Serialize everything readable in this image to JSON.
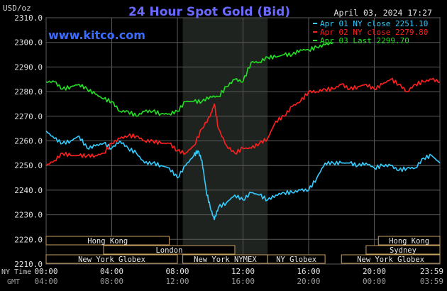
{
  "header": {
    "title": "24 Hour Spot Gold (Bid)",
    "unit": "USD/oz",
    "timestamp": "April 03, 2024 17:27",
    "watermark": "www.kitco.com"
  },
  "legend": [
    {
      "label": "Apr 01 NY close 2251.10",
      "color": "#33ccff"
    },
    {
      "label": "Apr 02 NY close 2279.80",
      "color": "#ff2020"
    },
    {
      "label": "Apr 03 Last 2299.70",
      "color": "#22e022"
    }
  ],
  "y_ticks": [
    "2310.0",
    "2300.0",
    "2290.0",
    "2280.0",
    "2270.0",
    "2260.0",
    "2250.0",
    "2240.0",
    "2230.0",
    "2220.0",
    "2210.0"
  ],
  "x_axis": {
    "ny_label": "NY Time",
    "gmt_label": "GMT",
    "ny_ticks": [
      "00:00",
      "04:00",
      "08:00",
      "12:00",
      "16:00",
      "20:00",
      "23:59"
    ],
    "gmt_ticks": [
      "04:00",
      "08:00",
      "12:00",
      "16:00",
      "20:00",
      "00:00",
      "03:59"
    ]
  },
  "sessions": [
    {
      "label": "Hong Kong",
      "row": 0,
      "start": 0,
      "end": 7.5
    },
    {
      "label": "Hong Kong",
      "row": 0,
      "start": 20.25,
      "end": 24
    },
    {
      "label": "London",
      "row": 1,
      "start": 3.5,
      "end": 11.5
    },
    {
      "label": "Sydney",
      "row": 1,
      "start": 19.5,
      "end": 24
    },
    {
      "label": "New York Globex",
      "row": 2,
      "start": 0,
      "end": 8
    },
    {
      "label": "New York NYMEX",
      "row": 2,
      "start": 8.33,
      "end": 13.5
    },
    {
      "label": "NY Globex",
      "row": 2,
      "start": 13.5,
      "end": 17
    },
    {
      "label": "New York Globex",
      "row": 2,
      "start": 18,
      "end": 24
    }
  ],
  "chart_data": {
    "type": "line",
    "title": "24 Hour Spot Gold (Bid)",
    "ylabel": "USD/oz",
    "ylim": [
      2210,
      2310
    ],
    "xlim": [
      0,
      24
    ],
    "x_unit": "hours NY time",
    "grid": true,
    "legend_position": "top-right",
    "highlight_band": [
      8.33,
      13.5
    ],
    "series": [
      {
        "name": "Apr 01 NY close 2251.10",
        "color": "#33ccff",
        "x": [
          0,
          0.5,
          1,
          1.5,
          2,
          2.5,
          3,
          3.5,
          4,
          4.5,
          5,
          5.5,
          6,
          6.5,
          7,
          7.5,
          8,
          8.5,
          9,
          9.25,
          9.5,
          9.75,
          10,
          10.25,
          10.5,
          11,
          11.5,
          12,
          12.5,
          13,
          13.5,
          14,
          14.5,
          15,
          15.5,
          16,
          16.5,
          17,
          17.5,
          18,
          18.5,
          19,
          19.5,
          20,
          20.5,
          21,
          21.5,
          22,
          22.5,
          23,
          23.5,
          24
        ],
        "y": [
          2264,
          2261,
          2259,
          2260,
          2262,
          2257,
          2258,
          2259,
          2257,
          2260,
          2257,
          2255,
          2251,
          2251,
          2250,
          2249,
          2245,
          2250,
          2254,
          2256,
          2252,
          2240,
          2233,
          2228,
          2233,
          2235,
          2238,
          2236,
          2239,
          2238,
          2236,
          2238,
          2239,
          2239,
          2240,
          2240,
          2245,
          2251,
          2251,
          2251,
          2251,
          2250,
          2251,
          2249,
          2250,
          2250,
          2248,
          2249,
          2249,
          2253,
          2254,
          2251
        ]
      },
      {
        "name": "Apr 02 NY close 2279.80",
        "color": "#ff2020",
        "x": [
          0,
          0.5,
          1,
          1.5,
          2,
          2.5,
          3,
          3.5,
          4,
          4.5,
          5,
          5.5,
          6,
          6.5,
          7,
          7.5,
          8,
          8.5,
          9,
          9.5,
          10,
          10.25,
          10.5,
          11,
          11.5,
          12,
          12.5,
          13,
          13.5,
          14,
          14.5,
          15,
          15.5,
          16,
          16.5,
          17,
          17.5,
          18,
          18.5,
          19,
          19.5,
          20,
          20.5,
          21,
          21.5,
          22,
          22.5,
          23,
          23.5,
          24
        ],
        "y": [
          2250,
          2252,
          2255,
          2254,
          2254,
          2254,
          2254,
          2255,
          2259,
          2261,
          2262,
          2262,
          2260,
          2260,
          2259,
          2259,
          2256,
          2255,
          2258,
          2265,
          2270,
          2275,
          2265,
          2258,
          2255,
          2257,
          2257,
          2259,
          2261,
          2268,
          2270,
          2274,
          2276,
          2280,
          2280,
          2281,
          2281,
          2283,
          2281,
          2282,
          2283,
          2281,
          2283,
          2285,
          2283,
          2280,
          2283,
          2284,
          2285,
          2284
        ]
      },
      {
        "name": "Apr 03 Last 2299.70",
        "color": "#22e022",
        "x": [
          0,
          0.5,
          1,
          1.5,
          2,
          2.5,
          3,
          3.5,
          4,
          4.5,
          5,
          5.5,
          6,
          6.5,
          7,
          7.5,
          8,
          8.5,
          9,
          9.5,
          10,
          10.5,
          11,
          11.5,
          12,
          12.5,
          13,
          13.5,
          14,
          14.5,
          15,
          15.5,
          16,
          16.5,
          17,
          17.5
        ],
        "y": [
          2284,
          2284,
          2281,
          2282,
          2283,
          2281,
          2279,
          2277,
          2276,
          2272,
          2272,
          2270,
          2272,
          2272,
          2271,
          2271,
          2272,
          2276,
          2276,
          2276,
          2278,
          2278,
          2282,
          2285,
          2284,
          2292,
          2292,
          2294,
          2294,
          2295,
          2295,
          2297,
          2297,
          2298,
          2299,
          2300
        ]
      }
    ]
  }
}
